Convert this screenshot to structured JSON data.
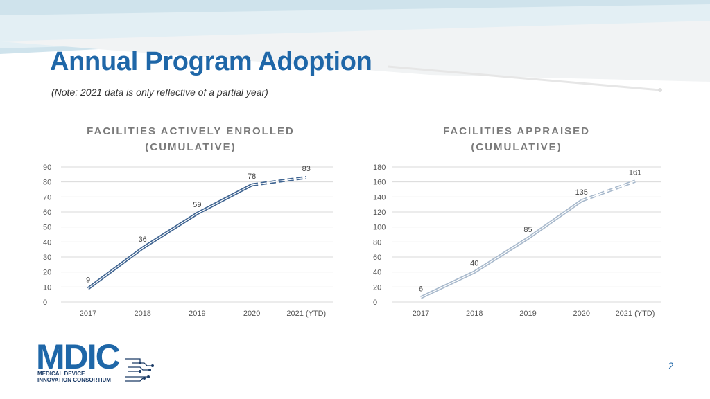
{
  "slide": {
    "title": "Annual Program Adoption",
    "note": "(Note: 2021 data is only reflective of a partial year)",
    "page_number": "2"
  },
  "logo": {
    "wordmark": "MDIC",
    "line1": "MEDICAL DEVICE",
    "line2": "INNOVATION CONSORTIUM"
  },
  "colors": {
    "title": "#1f67a8",
    "left_series": "#3f6491",
    "right_series": "#a8b9cc",
    "grid": "#d9d9d9"
  },
  "chart_data": [
    {
      "type": "line",
      "title_line1": "FACILITIES ACTIVELY ENROLLED",
      "title_line2": "(CUMULATIVE)",
      "categories": [
        "2017",
        "2018",
        "2019",
        "2020",
        "2021 (YTD)"
      ],
      "values": [
        9,
        36,
        59,
        78,
        83
      ],
      "ylim": [
        0,
        90
      ],
      "yticks": [
        0,
        10,
        20,
        30,
        40,
        50,
        60,
        70,
        80,
        90
      ],
      "dashed_last_segment": true
    },
    {
      "type": "line",
      "title_line1": "FACILITIES APPRAISED",
      "title_line2": "(CUMULATIVE)",
      "categories": [
        "2017",
        "2018",
        "2019",
        "2020",
        "2021 (YTD)"
      ],
      "values": [
        6,
        40,
        85,
        135,
        161
      ],
      "ylim": [
        0,
        180
      ],
      "yticks": [
        0,
        20,
        40,
        60,
        80,
        100,
        120,
        140,
        160,
        180
      ],
      "dashed_last_segment": true
    }
  ]
}
